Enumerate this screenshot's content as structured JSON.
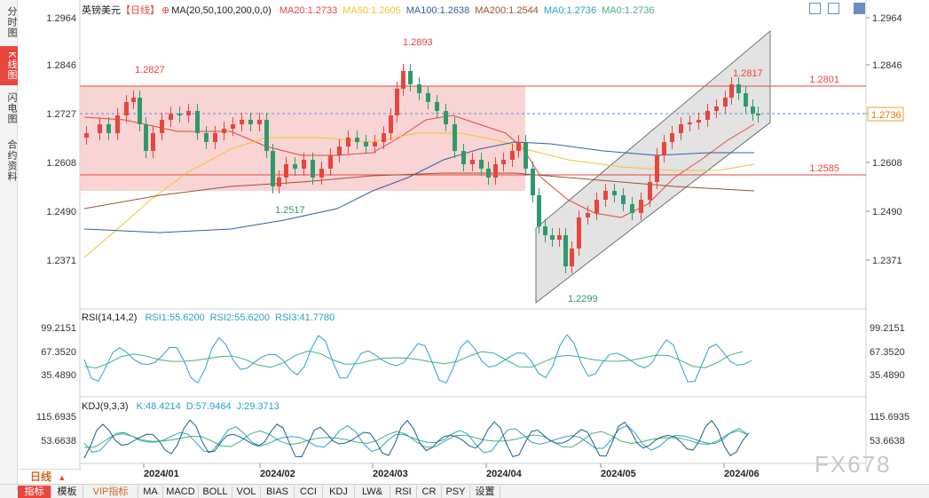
{
  "sidebar": {
    "tabs": [
      {
        "label": "分时图",
        "active": false
      },
      {
        "label": "K线图",
        "active": true
      },
      {
        "label": "闪电图",
        "active": false
      },
      {
        "label": "合约资料",
        "active": false
      }
    ]
  },
  "header": {
    "symbol": "英镑美元",
    "period_tag": "【日线】",
    "ma_params": "MA(20,50,100,200,0,0)",
    "ma_values": [
      {
        "label": "MA20:1.2733",
        "color": "#e8453c"
      },
      {
        "label": "MA50:1.2605",
        "color": "#f3c230"
      },
      {
        "label": "MA100:1.2638",
        "color": "#2f5fa8"
      },
      {
        "label": "MA200:1.2544",
        "color": "#a0522d"
      },
      {
        "label": "MA0:1.2736",
        "color": "#2aa3c8"
      },
      {
        "label": "MA0:1.2736",
        "color": "#3fb57a"
      }
    ]
  },
  "rsi": {
    "params": "RSI(14,14,2)",
    "values": [
      {
        "label": "RSI1:55.6200",
        "color": "#2aa3c8"
      },
      {
        "label": "RSI2:55.6200",
        "color": "#2aa3c8"
      },
      {
        "label": "RSI3:41.7780",
        "color": "#2aa3c8"
      }
    ],
    "ticks": [
      "99.2151",
      "67.3520",
      "35.4890"
    ]
  },
  "kdj": {
    "params": "KDJ(9,3,3)",
    "values": [
      {
        "label": "K:48.4214",
        "color": "#2aa3c8"
      },
      {
        "label": "D:57.9464",
        "color": "#2aa3c8"
      },
      {
        "label": "J:29.3713",
        "color": "#2aa3c8"
      }
    ],
    "ticks": [
      "115.6935",
      "53.6638"
    ]
  },
  "main_axis": {
    "ticks": [
      "1.2964",
      "1.2846",
      "1.2727",
      "1.2608",
      "1.2490",
      "1.2371"
    ],
    "current_price": "1.2736",
    "line_labels": [
      "1.2801",
      "1.2585"
    ]
  },
  "annotations": {
    "high_left": "1.2827",
    "high_mar": "1.2893",
    "low_feb": "1.2517",
    "low_apr": "1.2299",
    "high_may": "1.2817"
  },
  "x_axis": [
    "2024/01",
    "2024/02",
    "2024/03",
    "2024/04",
    "2024/05",
    "2024/06"
  ],
  "period": "日线",
  "bottom_tabs": [
    "指标",
    "模板",
    "VIP指标",
    "MA",
    "MACD",
    "BOLL",
    "VOL",
    "BIAS",
    "CCI",
    "KDJ",
    "LW&",
    "RSI",
    "CR",
    "PSY",
    "设置"
  ],
  "watermark": "FX678",
  "colors": {
    "up": "#e8453c",
    "down": "#2e9a6c",
    "accent": "#e8453c"
  }
}
